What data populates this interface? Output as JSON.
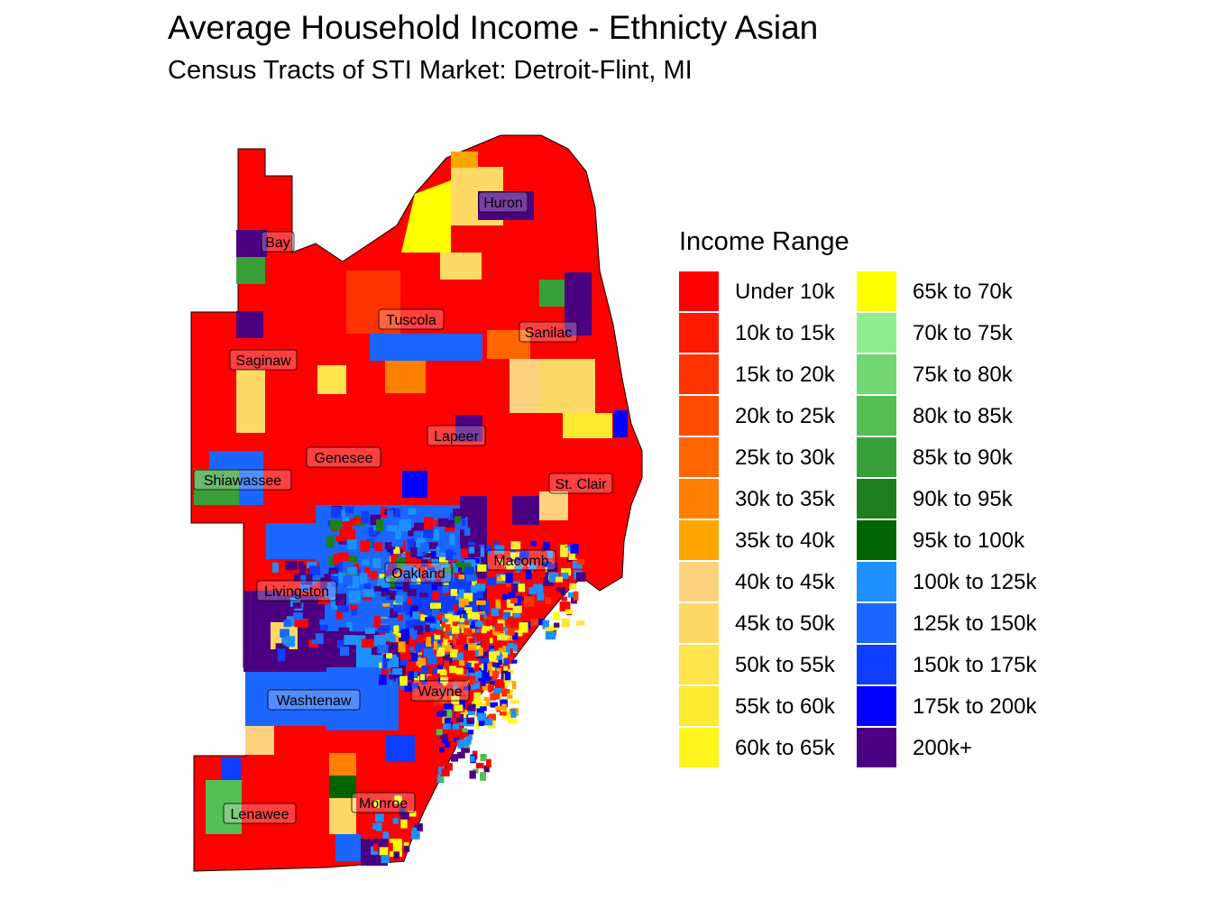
{
  "title": "Average Household Income - Ethnicty Asian",
  "subtitle": "Census Tracts of STI Market: Detroit-Flint, MI",
  "legend": {
    "title": "Income Range",
    "items": [
      {
        "label": "Under 10k",
        "color": "#FF0000"
      },
      {
        "label": "10k to 15k",
        "color": "#FF1A00"
      },
      {
        "label": "15k to 20k",
        "color": "#FF3300"
      },
      {
        "label": "20k to 25k",
        "color": "#FF4D00"
      },
      {
        "label": "25k to 30k",
        "color": "#FF6600"
      },
      {
        "label": "30k to 35k",
        "color": "#FF8000"
      },
      {
        "label": "35k to 40k",
        "color": "#FFA500"
      },
      {
        "label": "40k to 45k",
        "color": "#FFD27F"
      },
      {
        "label": "45k to 50k",
        "color": "#FFD966"
      },
      {
        "label": "50k to 55k",
        "color": "#FFE44D"
      },
      {
        "label": "55k to 60k",
        "color": "#FFEA33"
      },
      {
        "label": "60k to 65k",
        "color": "#FFF51A"
      },
      {
        "label": "65k to 70k",
        "color": "#FFFF00"
      },
      {
        "label": "70k to 75k",
        "color": "#90EE90"
      },
      {
        "label": "75k to 80k",
        "color": "#72D672"
      },
      {
        "label": "80k to 85k",
        "color": "#55BE55"
      },
      {
        "label": "85k to 90k",
        "color": "#39A039"
      },
      {
        "label": "90k to 95k",
        "color": "#1E7D1E"
      },
      {
        "label": "95k to 100k",
        "color": "#006400"
      },
      {
        "label": "100k to 125k",
        "color": "#1E90FF"
      },
      {
        "label": "125k to 150k",
        "color": "#1A66FF"
      },
      {
        "label": "150k to 175k",
        "color": "#0D3DFF"
      },
      {
        "label": "175k to 200k",
        "color": "#0000FF"
      },
      {
        "label": "200k+",
        "color": "#4B0082"
      }
    ]
  },
  "counties": [
    {
      "name": "Huron"
    },
    {
      "name": "Bay"
    },
    {
      "name": "Tuscola"
    },
    {
      "name": "Sanilac"
    },
    {
      "name": "Saginaw"
    },
    {
      "name": "Lapeer"
    },
    {
      "name": "Genesee"
    },
    {
      "name": "Shiawassee"
    },
    {
      "name": "St. Clair"
    },
    {
      "name": "Macomb"
    },
    {
      "name": "Oakland"
    },
    {
      "name": "Livingston"
    },
    {
      "name": "Wayne"
    },
    {
      "name": "Washtenaw"
    },
    {
      "name": "Monroe"
    },
    {
      "name": "Lenawee"
    }
  ]
}
